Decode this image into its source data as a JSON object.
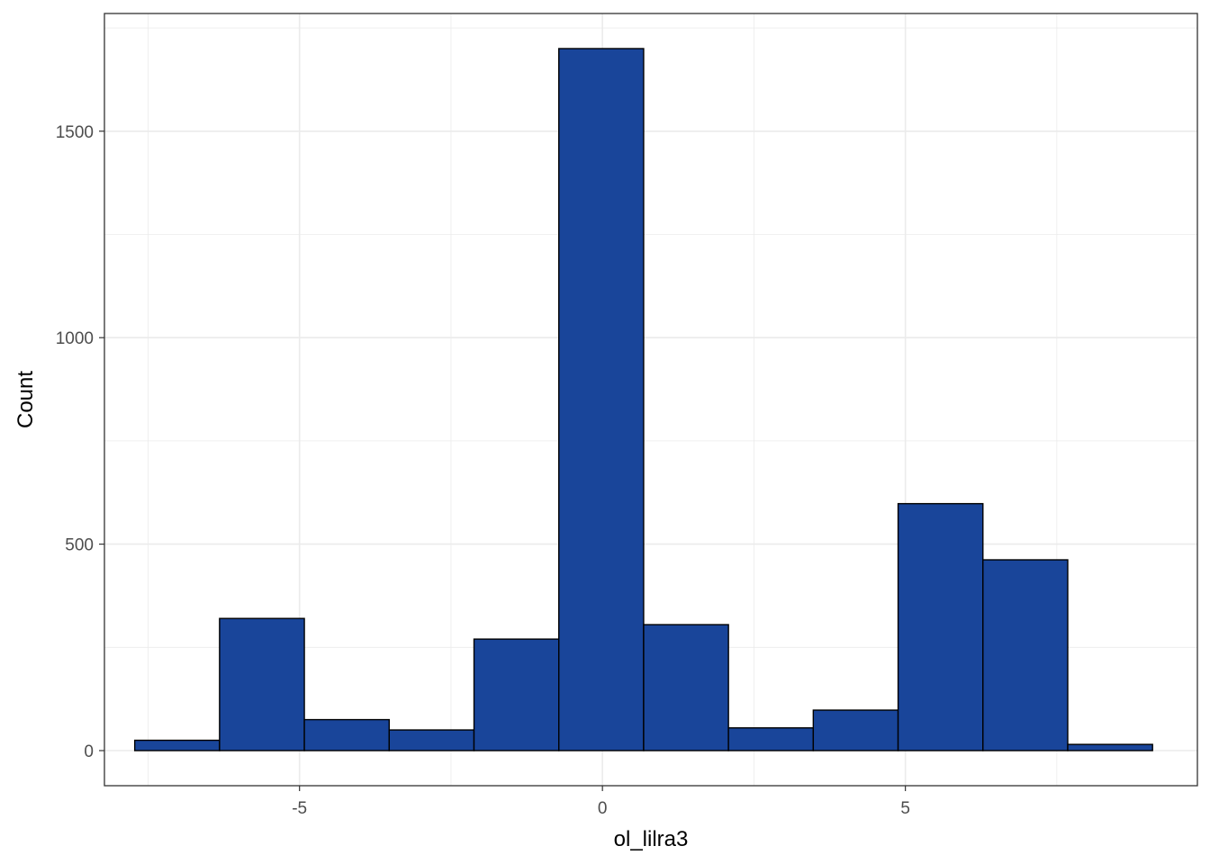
{
  "chart_data": {
    "type": "bar",
    "subtype": "histogram",
    "title": "",
    "xlabel": "ol_lilra3",
    "ylabel": "Count",
    "xlim": [
      -8.22,
      9.82
    ],
    "ylim": [
      -85,
      1785
    ],
    "x_ticks": [
      -5,
      0,
      5
    ],
    "x_tick_labels": [
      "-5",
      "0",
      "5"
    ],
    "y_ticks": [
      0,
      500,
      1000,
      1500
    ],
    "y_tick_labels": [
      "0",
      "500",
      "1000",
      "1500"
    ],
    "grid": true,
    "bin_edges": [
      -7.72,
      -6.32,
      -4.92,
      -3.52,
      -2.12,
      -0.72,
      0.68,
      2.08,
      3.48,
      4.88,
      6.28,
      7.68,
      9.08
    ],
    "values": [
      25,
      320,
      75,
      50,
      270,
      1700,
      305,
      55,
      98,
      598,
      462,
      15
    ],
    "colors": {
      "bar_fill": "#19459a",
      "bar_stroke": "#000000",
      "grid": "#ebebeb",
      "panel_border": "#333333",
      "tick_text": "#4d4d4d",
      "title_text": "#000000"
    }
  }
}
